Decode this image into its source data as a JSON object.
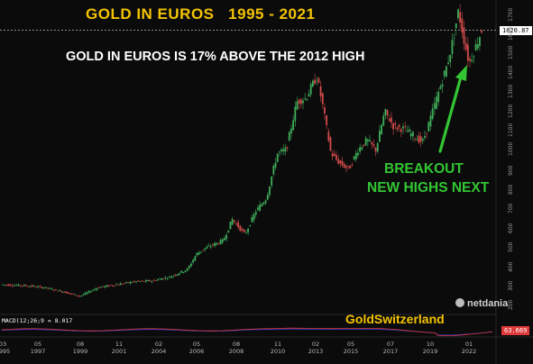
{
  "colors": {
    "background": "#0b0b0b",
    "title": "#f3c300",
    "subtitle": "#ffffff",
    "annotation": "#33c633",
    "up_candle": "#3fae5a",
    "down_candle": "#d44b4b",
    "macd_line": "#d53a3a",
    "signal_line": "#3b3bd6",
    "price_badge": "#ffffff",
    "macd_badge": "#e03a3a"
  },
  "header": {
    "title": "GOLD IN EUROS   1995 - 2021",
    "subtitle": "GOLD IN EUROS IS 17% ABOVE THE 2012 HIGH"
  },
  "annotation": {
    "line1": "BREAKOUT",
    "line2": "NEW HIGHS NEXT"
  },
  "brand": "GoldSwitzerland",
  "netdania": "netdania",
  "macd": {
    "label": "MACD(12;26;9 = 8.017",
    "value": "63.669"
  },
  "chart_data": {
    "type": "line",
    "title": "GOLD IN EUROS   1995 - 2021",
    "subtitle": "GOLD IN EUROS IS 17% ABOVE THE 2012 HIGH",
    "yaxis_side": "right",
    "ylim": [
      150,
      1750
    ],
    "yticks": [
      "200",
      "300",
      "400",
      "500",
      "600",
      "700",
      "800",
      "900",
      "1000",
      "1100",
      "1200",
      "1300",
      "1400",
      "1500",
      "1600",
      "1700"
    ],
    "current_price": 1620.87,
    "current_price_label": "1620.87",
    "x_ticks": [
      {
        "month": "03",
        "year": "1995"
      },
      {
        "month": "05",
        "year": "1997"
      },
      {
        "month": "08",
        "year": "1999"
      },
      {
        "month": "11",
        "year": "2001"
      },
      {
        "month": "02",
        "year": "2004"
      },
      {
        "month": "05",
        "year": "2006"
      },
      {
        "month": "08",
        "year": "2008"
      },
      {
        "month": "11",
        "year": "2010"
      },
      {
        "month": "02",
        "year": "2013"
      },
      {
        "month": "05",
        "year": "2015"
      },
      {
        "month": "07",
        "year": "2017"
      },
      {
        "month": "10",
        "year": "2019"
      },
      {
        "month": "01",
        "year": "2022"
      }
    ],
    "series": [
      {
        "approximate_path": [
          [
            1995.2,
            300
          ],
          [
            1996.5,
            295
          ],
          [
            1997.5,
            285
          ],
          [
            1998.5,
            265
          ],
          [
            1999.5,
            240
          ],
          [
            2000.5,
            285
          ],
          [
            2001.5,
            300
          ],
          [
            2002.5,
            315
          ],
          [
            2003.5,
            320
          ],
          [
            2004.5,
            340
          ],
          [
            2005.5,
            380
          ],
          [
            2006.0,
            460
          ],
          [
            2006.5,
            490
          ],
          [
            2007.5,
            530
          ],
          [
            2008.0,
            640
          ],
          [
            2008.7,
            560
          ],
          [
            2009.3,
            680
          ],
          [
            2009.9,
            750
          ],
          [
            2010.5,
            980
          ],
          [
            2011.0,
            1000
          ],
          [
            2011.6,
            1250
          ],
          [
            2012.1,
            1270
          ],
          [
            2012.7,
            1380
          ],
          [
            2013.0,
            1250
          ],
          [
            2013.5,
            980
          ],
          [
            2014.0,
            930
          ],
          [
            2014.5,
            900
          ],
          [
            2015.0,
            1000
          ],
          [
            2015.5,
            1050
          ],
          [
            2016.0,
            1000
          ],
          [
            2016.5,
            1200
          ],
          [
            2017.0,
            1120
          ],
          [
            2017.5,
            1110
          ],
          [
            2018.0,
            1080
          ],
          [
            2018.6,
            1040
          ],
          [
            2019.0,
            1150
          ],
          [
            2019.5,
            1300
          ],
          [
            2020.0,
            1450
          ],
          [
            2020.3,
            1570
          ],
          [
            2020.6,
            1720
          ],
          [
            2020.9,
            1580
          ],
          [
            2021.2,
            1450
          ],
          [
            2021.5,
            1520
          ],
          [
            2021.9,
            1621
          ]
        ]
      }
    ],
    "macd_panel": true
  }
}
